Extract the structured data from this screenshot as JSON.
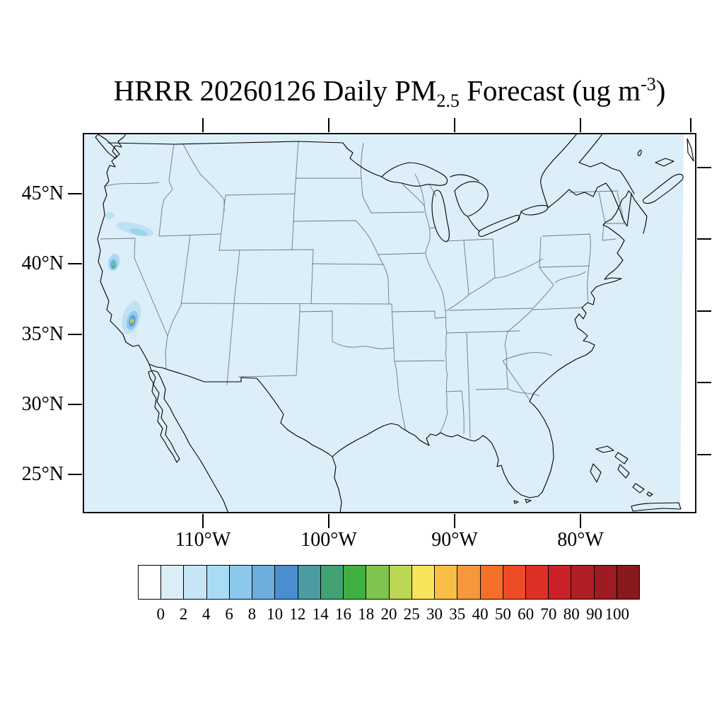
{
  "title": {
    "prefix": "HRRR 20260126 Daily PM",
    "subscript": "2.5",
    "middle": " Forecast (ug m",
    "superscript": "-3",
    "suffix": ")"
  },
  "map": {
    "lat_labels": [
      "45°N",
      "40°N",
      "35°N",
      "30°N",
      "25°N"
    ],
    "lon_labels": [
      "110°W",
      "100°W",
      "90°W",
      "80°W"
    ],
    "background_color": "#DCEEF8",
    "outside_domain_color": "#FFFFFF",
    "coastline_color": "#000000",
    "state_border_color": "#6b7b8a"
  },
  "colorbar": {
    "tick_labels": [
      "0",
      "2",
      "4",
      "6",
      "8",
      "10",
      "12",
      "14",
      "16",
      "18",
      "20",
      "25",
      "30",
      "35",
      "40",
      "50",
      "60",
      "70",
      "80",
      "90",
      "100"
    ],
    "colors": [
      "#FFFFFF",
      "#DCEEF8",
      "#C6E5F6",
      "#A9DCF4",
      "#8BC8EC",
      "#6DAEDE",
      "#4B8ED0",
      "#4B9CA2",
      "#43A273",
      "#40B042",
      "#7FC44E",
      "#BBD754",
      "#F7E45A",
      "#F8BE48",
      "#F6973B",
      "#F56F29",
      "#EE4C27",
      "#DE3126",
      "#C92127",
      "#B01F26",
      "#9D1B21",
      "#881A1D"
    ]
  },
  "plumes": [
    {
      "region": "southwest-oregon",
      "colors": [
        "#BEE1F4"
      ]
    },
    {
      "region": "south-central-oregon",
      "colors": [
        "#BEE1F4",
        "#9FD2F0"
      ]
    },
    {
      "region": "northern-california",
      "colors": [
        "#A9D8F2",
        "#6FB2E0",
        "#3FAF3F",
        "#F7E45A"
      ]
    },
    {
      "region": "central-california",
      "colors": [
        "#BEE1F4",
        "#93C8ED",
        "#5FA1D8",
        "#BCD854",
        "#F7E45A",
        "#EE4C27"
      ]
    }
  ]
}
